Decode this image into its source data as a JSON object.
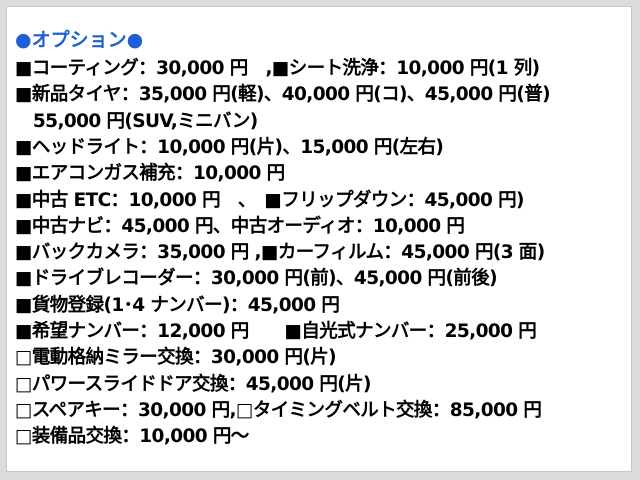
{
  "title": "●オプション●",
  "lines": [
    "■コーティング：30,000 円　,■シート洗浄：10,000 円(1 列)",
    "■新品タイヤ：35,000 円(軽)、40,000 円(コ)、45,000 円(普)",
    "　55,000 円(SUV,ミニバン)",
    "■ヘッドライト：10,000 円(片)、15,000 円(左右)",
    "■エアコンガス補充：10,000 円",
    "■中古 ETC：10,000 円　、　■フリップダウン：45,000 円)",
    "■中古ナビ：45,000 円、中古オーディオ：10,000 円",
    "■バックカメラ：35,000 円 ,■カーフィルム：45,000 円(3 面)",
    "■ドライブレコーダー：30,000 円(前)、45,000 円(前後)",
    "■貨物登録(1･4 ナンバー)：45,000 円",
    "■希望ナンバー：12,000 円　　■自光式ナンバー：25,000 円",
    "□電動格納ミラー交換：30,000 円(片)",
    "□パワースライドドア交換：45,000 円(片)",
    "□スペアキー：30,000 円,□タイミングベルト交換：85,000 円",
    "□装備品交換：10,000 円～"
  ]
}
